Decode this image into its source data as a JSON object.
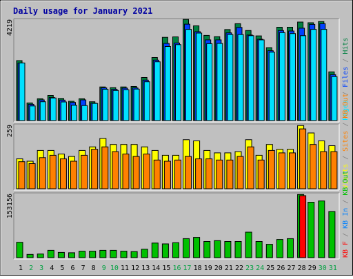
{
  "chart_data": {
    "type": "bar",
    "title": "Daily usage for January 2021",
    "categories": [
      "1",
      "2",
      "3",
      "4",
      "5",
      "6",
      "7",
      "8",
      "9",
      "10",
      "11",
      "12",
      "13",
      "14",
      "15",
      "16",
      "17",
      "18",
      "19",
      "20",
      "21",
      "22",
      "23",
      "24",
      "25",
      "26",
      "27",
      "28",
      "29",
      "30",
      "31"
    ],
    "weekend_days": [
      "2",
      "3",
      "9",
      "10",
      "16",
      "17",
      "23",
      "24",
      "30",
      "31"
    ],
    "panels": [
      {
        "id": "hits-panel",
        "max_label": "4219",
        "ymax": 4219,
        "legend": [
          {
            "text": "Pages",
            "color": "#00e0ff"
          },
          {
            "text": " / ",
            "color": "#808080"
          },
          {
            "text": "Files",
            "color": "#0040ff"
          },
          {
            "text": " / ",
            "color": "#808080"
          },
          {
            "text": "Hits",
            "color": "#008040"
          }
        ],
        "series": [
          {
            "name": "Hits",
            "color": "#008040",
            "values": [
              2550,
              750,
              930,
              1070,
              940,
              820,
              930,
              800,
              1430,
              1400,
              1430,
              1450,
              1830,
              2680,
              3540,
              3560,
              4300,
              4030,
              3620,
              3570,
              3870,
              4120,
              3830,
              3600,
              3100,
              3970,
              3970,
              4190,
              4160,
              4210,
              2070
            ]
          },
          {
            "name": "Files",
            "color": "#0040ff",
            "values": [
              2450,
              690,
              880,
              980,
              870,
              770,
              880,
              740,
              1390,
              1330,
              1380,
              1390,
              1720,
              2570,
              3280,
              3300,
              4100,
              3780,
              3430,
              3430,
              3730,
              3960,
              3640,
              3460,
              2970,
              3830,
              3810,
              3930,
              4090,
              4120,
              1950
            ]
          },
          {
            "name": "Pages",
            "color": "#00e0ff",
            "values": [
              2450,
              620,
              800,
              960,
              790,
              650,
              640,
              730,
              1330,
              1280,
              1310,
              1340,
              1650,
              2500,
              3150,
              3230,
              3880,
              3720,
              3270,
              3280,
              3660,
              3660,
              3610,
              3430,
              2910,
              3740,
              3700,
              3610,
              3880,
              3880,
              1870
            ]
          }
        ]
      },
      {
        "id": "visits-panel",
        "max_label": "259",
        "ymax": 259,
        "legend": [
          {
            "text": "Visits",
            "color": "#ffff00"
          },
          {
            "text": " / ",
            "color": "#808080"
          },
          {
            "text": "Sites",
            "color": "#ff8000"
          },
          {
            "text": " / ",
            "color": "#808080"
          },
          {
            "text": "KB Out",
            "color": "#ff8000"
          }
        ],
        "series": [
          {
            "name": "Visits",
            "color": "#ffff00",
            "values": [
              125,
              115,
              160,
              160,
              145,
              135,
              160,
              175,
              210,
              185,
              185,
              185,
              175,
              160,
              140,
              140,
              205,
              200,
              160,
              150,
              150,
              155,
              205,
              140,
              185,
              165,
              165,
              264,
              233,
              200,
              180
            ]
          },
          {
            "name": "Sites",
            "color": "#ff8000",
            "values": [
              113,
              105,
              130,
              140,
              125,
              115,
              140,
              165,
              175,
              155,
              145,
              135,
              145,
              120,
              115,
              120,
              135,
              125,
              125,
              120,
              120,
              135,
              175,
              120,
              160,
              150,
              150,
              250,
              185,
              155,
              155
            ]
          }
        ]
      },
      {
        "id": "kbytes-panel",
        "max_label": "153156",
        "ymax": 153156,
        "legend": [
          {
            "text": "KB F",
            "color": "#ff0000"
          },
          {
            "text": " / ",
            "color": "#808080"
          },
          {
            "text": "KB In",
            "color": "#0080ff"
          },
          {
            "text": " / ",
            "color": "#808080"
          },
          {
            "text": "KB Out",
            "color": "#00c000"
          }
        ],
        "series": [
          {
            "name": "KB Out",
            "color": "#00c000",
            "values": [
              38000,
              8000,
              9000,
              18000,
              13000,
              12000,
              16000,
              16000,
              18000,
              18000,
              16000,
              15000,
              21000,
              36000,
              34000,
              37000,
              47000,
              50000,
              40000,
              42000,
              40000,
              40000,
              63000,
              40000,
              33000,
              45000,
              47000,
              156000,
              137000,
              140000,
              114000
            ]
          },
          {
            "name": "KB F",
            "color": "#ff0000",
            "values": [
              0,
              0,
              0,
              0,
              0,
              0,
              0,
              0,
              0,
              0,
              0,
              0,
              0,
              0,
              0,
              0,
              0,
              0,
              0,
              0,
              0,
              0,
              0,
              0,
              0,
              0,
              0,
              153156,
              0,
              0,
              0
            ]
          }
        ]
      }
    ]
  }
}
